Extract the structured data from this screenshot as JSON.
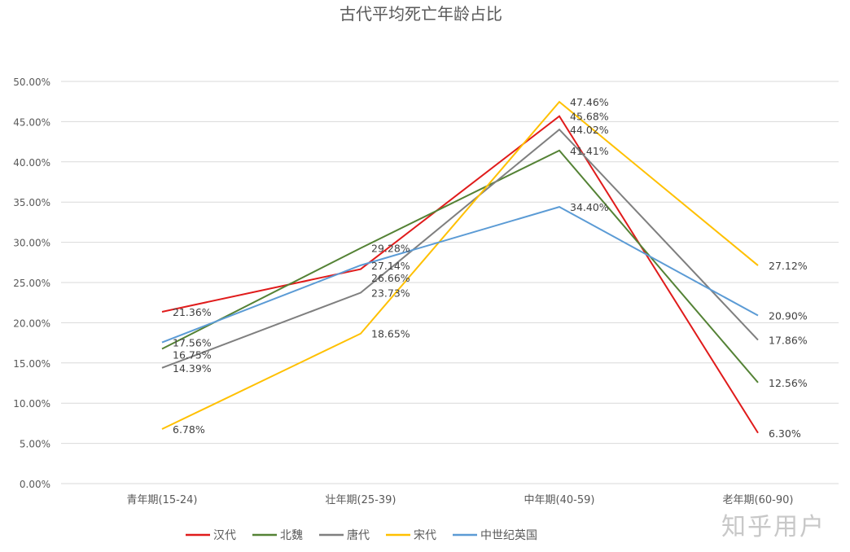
{
  "chart_data": {
    "type": "line",
    "title": "古代平均死亡年龄占比",
    "categories": [
      "青年期(15-24)",
      "壮年期(25-39)",
      "中年期(40-59)",
      "老年期(60-90)"
    ],
    "series": [
      {
        "name": "汉代",
        "color": "#e01b1b",
        "values": [
          21.36,
          26.66,
          45.68,
          6.3
        ]
      },
      {
        "name": "北魏",
        "color": "#548235",
        "values": [
          16.75,
          29.28,
          41.41,
          12.56
        ]
      },
      {
        "name": "唐代",
        "color": "#7f7f7f",
        "values": [
          14.39,
          23.73,
          44.02,
          17.86
        ]
      },
      {
        "name": "宋代",
        "color": "#ffc000",
        "values": [
          6.78,
          18.65,
          47.46,
          27.12
        ]
      },
      {
        "name": "中世纪英国",
        "color": "#5b9bd5",
        "values": [
          17.56,
          27.14,
          34.4,
          20.9
        ]
      }
    ],
    "yticks": [
      "0.00%",
      "5.00%",
      "10.00%",
      "15.00%",
      "20.00%",
      "25.00%",
      "30.00%",
      "35.00%",
      "40.00%",
      "45.00%",
      "50.00%"
    ],
    "ylim": [
      0,
      50
    ],
    "grid": true,
    "legend": "bottom",
    "data_labels": true
  },
  "watermark": "知乎用户"
}
